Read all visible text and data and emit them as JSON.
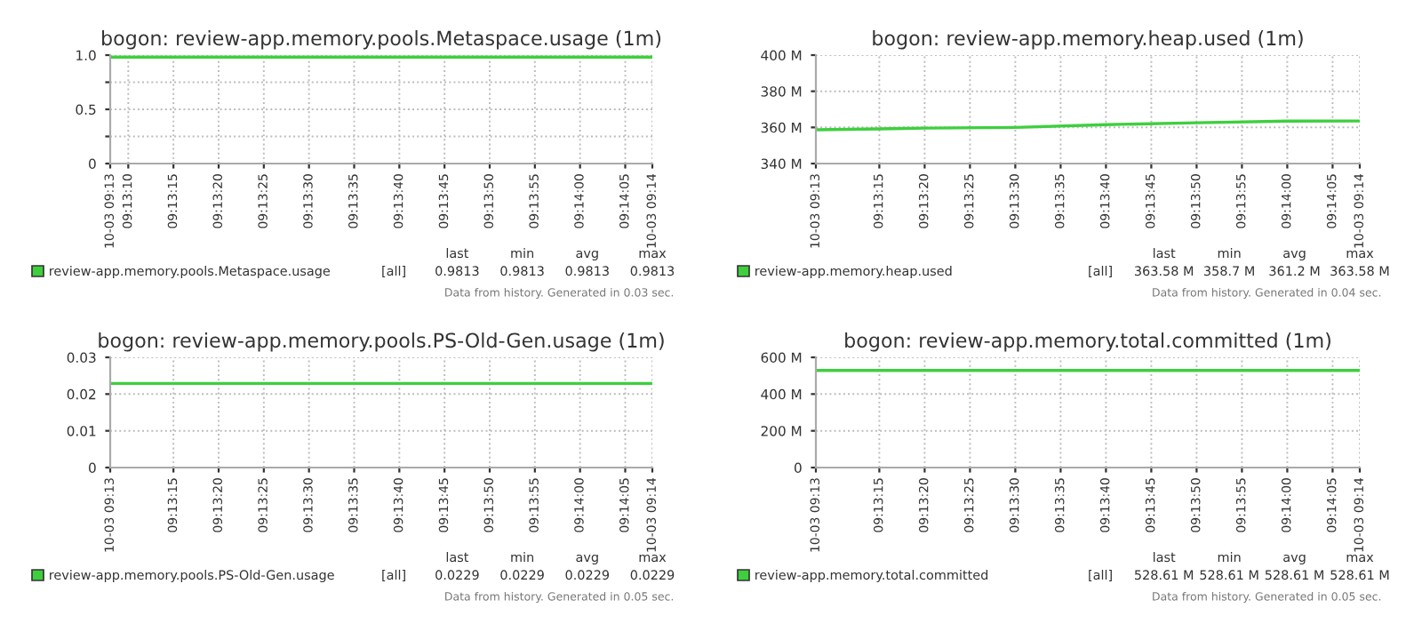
{
  "chart_data": [
    {
      "type": "line",
      "title": "bogon: review-app.memory.pools.Metaspace.usage (1m)",
      "x": [
        9.2188889,
        9.2355556
      ],
      "series": [
        {
          "name": "review-app.memory.pools.Metaspace.usage",
          "color": "#3ecf3e",
          "values": [
            0.9813,
            0.9813
          ]
        }
      ],
      "xlim": [
        9.2188889,
        9.2355556
      ],
      "xticks": [
        {
          "value": 9.2188889,
          "label": "10-03 09:13"
        },
        {
          "value": 9.2194444,
          "label": "09:13:10"
        },
        {
          "value": 9.2208333,
          "label": "09:13:15"
        },
        {
          "value": 9.2222222,
          "label": "09:13:20"
        },
        {
          "value": 9.2236111,
          "label": "09:13:25"
        },
        {
          "value": 9.225,
          "label": "09:13:30"
        },
        {
          "value": 9.2263889,
          "label": "09:13:35"
        },
        {
          "value": 9.2277778,
          "label": "09:13:40"
        },
        {
          "value": 9.2291667,
          "label": "09:13:45"
        },
        {
          "value": 9.2305556,
          "label": "09:13:50"
        },
        {
          "value": 9.2319444,
          "label": "09:13:55"
        },
        {
          "value": 9.2333333,
          "label": "09:14:00"
        },
        {
          "value": 9.2347222,
          "label": "09:14:05"
        },
        {
          "value": 9.2355556,
          "label": "10-03 09:14"
        }
      ],
      "ylim": [
        0,
        1
      ],
      "yticks": [
        0,
        {
          "value": 0.25,
          "label": null
        },
        0.5,
        {
          "value": 0.75,
          "label": null
        },
        {
          "value": 1,
          "label": "1.0"
        }
      ],
      "grid": true,
      "legend": "bottom",
      "annotations": [
        "[all]",
        "last",
        "min",
        "avg",
        "max",
        "0.9813",
        "0.9813",
        "0.9813",
        "0.9813",
        "Data from history. Generated in 0.03 sec."
      ]
    },
    {
      "type": "line",
      "title": "bogon: review-app.memory.heap.used (1m)",
      "x": [
        9.2188889,
        9.2208333,
        9.2222222,
        9.225,
        9.2277778,
        9.2305556,
        9.2333333,
        9.2355556
      ],
      "series": [
        {
          "name": "review-app.memory.heap.used",
          "color": "#3ecf3e",
          "values": [
            358.7,
            359.2,
            359.6,
            360.0,
            361.5,
            362.6,
            363.5,
            363.58
          ]
        }
      ],
      "xlim": [
        9.2188889,
        9.2355556
      ],
      "xticks": [
        {
          "value": 9.2188889,
          "label": "10-03 09:13"
        },
        {
          "value": 9.2208333,
          "label": "09:13:15"
        },
        {
          "value": 9.2222222,
          "label": "09:13:20"
        },
        {
          "value": 9.2236111,
          "label": "09:13:25"
        },
        {
          "value": 9.225,
          "label": "09:13:30"
        },
        {
          "value": 9.2263889,
          "label": "09:13:35"
        },
        {
          "value": 9.2277778,
          "label": "09:13:40"
        },
        {
          "value": 9.2291667,
          "label": "09:13:45"
        },
        {
          "value": 9.2305556,
          "label": "09:13:50"
        },
        {
          "value": 9.2319444,
          "label": "09:13:55"
        },
        {
          "value": 9.2333333,
          "label": "09:14:00"
        },
        {
          "value": 9.2347222,
          "label": "09:14:05"
        },
        {
          "value": 9.2355556,
          "label": "10-03 09:14"
        }
      ],
      "ylim": [
        340,
        400
      ],
      "yticks": [
        {
          "value": 340,
          "label": "340 M"
        },
        {
          "value": 360,
          "label": "360 M"
        },
        {
          "value": 380,
          "label": "380 M"
        },
        {
          "value": 400,
          "label": "400 M"
        }
      ],
      "grid": true,
      "legend": "bottom",
      "annotations": [
        "[all]",
        "last",
        "min",
        "avg",
        "max",
        "363.58 M",
        "358.7 M",
        "361.2 M",
        "363.58 M",
        "Data from history. Generated in 0.04 sec."
      ]
    },
    {
      "type": "line",
      "title": "bogon: review-app.memory.pools.PS-Old-Gen.usage (1m)",
      "x": [
        9.2188889,
        9.2355556
      ],
      "series": [
        {
          "name": "review-app.memory.pools.PS-Old-Gen.usage",
          "color": "#3ecf3e",
          "values": [
            0.0229,
            0.0229
          ]
        }
      ],
      "xlim": [
        9.2188889,
        9.2355556
      ],
      "xticks": [
        {
          "value": 9.2188889,
          "label": "10-03 09:13"
        },
        {
          "value": 9.2208333,
          "label": "09:13:15"
        },
        {
          "value": 9.2222222,
          "label": "09:13:20"
        },
        {
          "value": 9.2236111,
          "label": "09:13:25"
        },
        {
          "value": 9.225,
          "label": "09:13:30"
        },
        {
          "value": 9.2263889,
          "label": "09:13:35"
        },
        {
          "value": 9.2277778,
          "label": "09:13:40"
        },
        {
          "value": 9.2291667,
          "label": "09:13:45"
        },
        {
          "value": 9.2305556,
          "label": "09:13:50"
        },
        {
          "value": 9.2319444,
          "label": "09:13:55"
        },
        {
          "value": 9.2333333,
          "label": "09:14:00"
        },
        {
          "value": 9.2347222,
          "label": "09:14:05"
        },
        {
          "value": 9.2355556,
          "label": "10-03 09:14"
        }
      ],
      "ylim": [
        0,
        0.03
      ],
      "yticks": [
        0,
        0.01,
        0.02,
        0.03
      ],
      "grid": true,
      "legend": "bottom",
      "annotations": [
        "[all]",
        "last",
        "min",
        "avg",
        "max",
        "0.0229",
        "0.0229",
        "0.0229",
        "0.0229",
        "Data from history. Generated in 0.05 sec."
      ]
    },
    {
      "type": "line",
      "title": "bogon: review-app.memory.total.committed (1m)",
      "x": [
        9.2188889,
        9.2355556
      ],
      "series": [
        {
          "name": "review-app.memory.total.committed",
          "color": "#3ecf3e",
          "values": [
            528.61,
            528.61
          ]
        }
      ],
      "xlim": [
        9.2188889,
        9.2355556
      ],
      "xticks": [
        {
          "value": 9.2188889,
          "label": "10-03 09:13"
        },
        {
          "value": 9.2208333,
          "label": "09:13:15"
        },
        {
          "value": 9.2222222,
          "label": "09:13:20"
        },
        {
          "value": 9.2236111,
          "label": "09:13:25"
        },
        {
          "value": 9.225,
          "label": "09:13:30"
        },
        {
          "value": 9.2263889,
          "label": "09:13:35"
        },
        {
          "value": 9.2277778,
          "label": "09:13:40"
        },
        {
          "value": 9.2291667,
          "label": "09:13:45"
        },
        {
          "value": 9.2305556,
          "label": "09:13:50"
        },
        {
          "value": 9.2319444,
          "label": "09:13:55"
        },
        {
          "value": 9.2333333,
          "label": "09:14:00"
        },
        {
          "value": 9.2347222,
          "label": "09:14:05"
        },
        {
          "value": 9.2355556,
          "label": "10-03 09:14"
        }
      ],
      "ylim": [
        0,
        600
      ],
      "yticks": [
        0,
        {
          "value": 200,
          "label": "200 M"
        },
        {
          "value": 400,
          "label": "400 M"
        },
        {
          "value": 600,
          "label": "600 M"
        }
      ],
      "grid": true,
      "legend": "bottom",
      "annotations": [
        "[all]",
        "last",
        "min",
        "avg",
        "max",
        "528.61 M",
        "528.61 M",
        "528.61 M",
        "528.61 M",
        "Data from history. Generated in 0.05 sec."
      ]
    }
  ]
}
